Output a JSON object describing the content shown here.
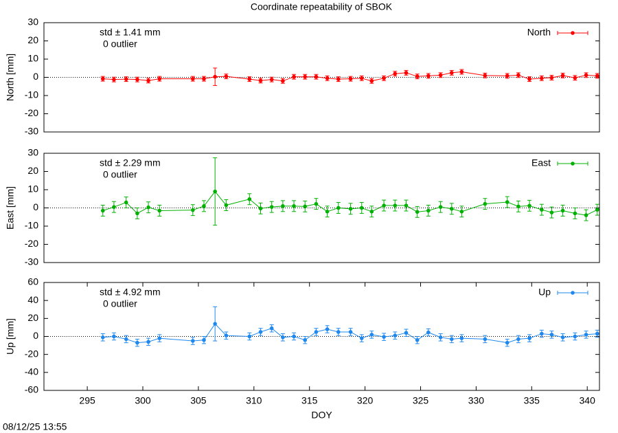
{
  "timestamp": "08/12/25 13:55",
  "chart_data": [
    {
      "type": "line",
      "title": "Coordinate repeatability of SBOK",
      "ylabel": "North [mm]",
      "annotations": [
        "std ± 1.41 mm",
        "0 outlier"
      ],
      "legend": "upper right",
      "zero_line": true,
      "xlim": [
        291.1,
        341.1
      ],
      "ylim": [
        -30,
        30
      ],
      "yticks": [
        -30,
        -20,
        -10,
        0,
        10,
        20,
        30
      ],
      "x": [
        296.4,
        297.4,
        298.5,
        299.5,
        300.5,
        301.5,
        304.5,
        305.5,
        306.5,
        307.5,
        309.6,
        310.6,
        311.6,
        312.6,
        313.6,
        314.6,
        315.6,
        316.6,
        317.6,
        318.7,
        319.7,
        320.6,
        321.7,
        322.7,
        323.7,
        324.7,
        325.7,
        326.8,
        327.8,
        328.7,
        330.8,
        332.8,
        333.8,
        334.8,
        335.9,
        336.8,
        337.8,
        338.9,
        339.9,
        340.9
      ],
      "series": [
        {
          "name": "North",
          "color": "#ff0000",
          "values": [
            -0.8,
            -1.2,
            -1,
            -1.2,
            -1.8,
            -0.8,
            -0.8,
            -0.8,
            0.3,
            0.5,
            -1,
            -1.8,
            -1.2,
            -2,
            0.3,
            0.3,
            0.3,
            -0.5,
            -1,
            -0.8,
            -0.5,
            -2,
            -0.5,
            2,
            2.5,
            0.5,
            0.8,
            1.2,
            2.5,
            3,
            1,
            0.8,
            1.2,
            -1,
            -0.5,
            -0.2,
            1,
            -0.3,
            1.2,
            0.8
          ],
          "errors": [
            1.3,
            1.3,
            1.3,
            1.3,
            1.3,
            1.3,
            1.3,
            1.3,
            4.8,
            1.3,
            1.3,
            1.3,
            1.3,
            1.3,
            1.3,
            1.3,
            1.3,
            1.3,
            1.3,
            1.3,
            1.3,
            1.3,
            1.3,
            1.3,
            1.3,
            1.3,
            1.3,
            1.3,
            1.3,
            1.3,
            1.3,
            1.3,
            1.3,
            1.3,
            1.3,
            1.3,
            1.3,
            1.3,
            1.3,
            1.3
          ]
        }
      ]
    },
    {
      "type": "line",
      "ylabel": "East [mm]",
      "annotations": [
        "std ± 2.29 mm",
        "0 outlier"
      ],
      "legend": "upper right",
      "zero_line": true,
      "xlim": [
        291.1,
        341.1
      ],
      "ylim": [
        -30,
        30
      ],
      "yticks": [
        -30,
        -20,
        -10,
        0,
        10,
        20,
        30
      ],
      "x": [
        296.4,
        297.4,
        298.5,
        299.5,
        300.5,
        301.5,
        304.5,
        305.5,
        306.5,
        307.5,
        309.6,
        310.6,
        311.6,
        312.6,
        313.6,
        314.6,
        315.6,
        316.6,
        317.6,
        318.7,
        319.7,
        320.6,
        321.7,
        322.7,
        323.7,
        324.7,
        325.7,
        326.8,
        327.8,
        328.7,
        330.8,
        332.8,
        333.8,
        334.8,
        335.9,
        336.8,
        337.8,
        338.9,
        339.9,
        340.9
      ],
      "series": [
        {
          "name": "East",
          "color": "#00b000",
          "values": [
            -1.5,
            0.5,
            3,
            -3,
            0.3,
            -1.5,
            -1.2,
            1,
            9,
            1.5,
            4.8,
            -0.3,
            0.5,
            1,
            1,
            0.8,
            2.2,
            -2,
            0,
            -0.5,
            0,
            -2,
            1.3,
            1.3,
            1.3,
            -2.2,
            -1.5,
            0.5,
            -0.5,
            -2,
            2.2,
            3.2,
            0.8,
            1.2,
            -1,
            -2.5,
            -1.5,
            -3,
            -4,
            -1
          ],
          "errors": [
            3,
            3,
            3,
            3,
            3,
            3,
            3,
            3,
            18.5,
            3,
            3,
            3,
            3,
            3,
            3,
            3,
            3,
            3,
            3,
            3,
            3,
            3,
            3,
            3,
            3,
            3,
            3,
            3,
            3,
            3,
            3,
            3,
            3,
            3,
            3,
            3,
            3,
            3,
            3,
            3
          ]
        }
      ]
    },
    {
      "type": "line",
      "ylabel": "Up [mm]",
      "xlabel": "DOY",
      "annotations": [
        "std ± 4.92 mm",
        "0 outlier"
      ],
      "legend": "upper right",
      "zero_line": true,
      "xlim": [
        291.1,
        341.1
      ],
      "xticks": [
        295,
        300,
        305,
        310,
        315,
        320,
        325,
        330,
        335,
        340
      ],
      "ylim": [
        -60,
        60
      ],
      "yticks": [
        -60,
        -40,
        -20,
        0,
        20,
        40,
        60
      ],
      "x": [
        296.4,
        297.4,
        298.5,
        299.5,
        300.5,
        301.5,
        304.5,
        305.5,
        306.5,
        307.5,
        309.6,
        310.6,
        311.6,
        312.6,
        313.6,
        314.6,
        315.6,
        316.6,
        317.6,
        318.7,
        319.7,
        320.6,
        321.7,
        322.7,
        323.7,
        324.7,
        325.7,
        326.8,
        327.8,
        328.7,
        330.8,
        332.8,
        333.8,
        334.8,
        335.9,
        336.8,
        337.8,
        338.9,
        339.9,
        340.9
      ],
      "series": [
        {
          "name": "Up",
          "color": "#1e88ee",
          "values": [
            -1,
            0,
            -3,
            -7,
            -6,
            -2,
            -5,
            -4,
            14,
            1,
            0,
            5,
            9,
            -1,
            0,
            -4,
            5,
            8,
            5,
            5,
            -2,
            2,
            -0.5,
            1,
            4,
            -4,
            4.5,
            -1,
            -3,
            -2,
            -3,
            -7,
            -3,
            -2,
            3,
            2,
            -1,
            0,
            2,
            3
          ],
          "errors": [
            4,
            4,
            4,
            4,
            4,
            4,
            4,
            4,
            19,
            4,
            4,
            4,
            4,
            4,
            4,
            4,
            4,
            4,
            4,
            4,
            4,
            4,
            4,
            4,
            4,
            4,
            4,
            4,
            4,
            4,
            4,
            4,
            4,
            4,
            4,
            4,
            4,
            4,
            4,
            4
          ]
        }
      ]
    }
  ]
}
